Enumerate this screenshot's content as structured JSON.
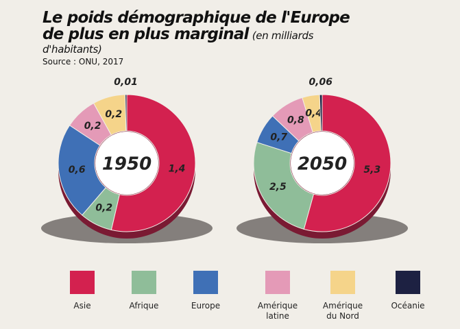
{
  "title": "Le poids démographique de l'Europe de plus en plus marginal",
  "subtitle": "(en milliards d'habitants)",
  "source": "Source : ONU, 2017",
  "chart_data": {
    "type": "pie",
    "categories": [
      "Asie",
      "Afrique",
      "Europe",
      "Amérique latine",
      "Amérique du Nord",
      "Océanie"
    ],
    "colors": [
      "#d3214f",
      "#8fbd99",
      "#3f70b6",
      "#e49ab7",
      "#f5d48a",
      "#1d2142"
    ],
    "series": [
      {
        "name": "1950",
        "values": [
          1.4,
          0.2,
          0.6,
          0.2,
          0.2,
          0.01
        ],
        "value_labels": [
          "1,4",
          "0,2",
          "0,6",
          "0,2",
          "0,2",
          "0,01"
        ]
      },
      {
        "name": "2050",
        "values": [
          5.3,
          2.5,
          0.7,
          0.8,
          0.4,
          0.06
        ],
        "value_labels": [
          "5,3",
          "2,5",
          "0,7",
          "0,8",
          "0,4",
          "0,06"
        ]
      }
    ]
  }
}
